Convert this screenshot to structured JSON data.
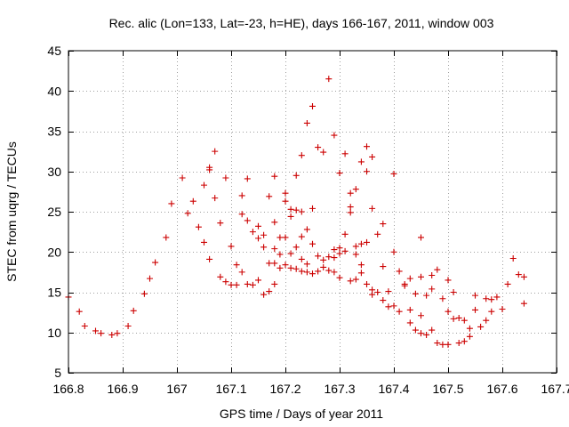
{
  "chart_data": {
    "type": "scatter",
    "title": "Rec. alic (Lon=133, Lat=-23, h=HE), days 166-167, 2011, window 003",
    "xlabel": "GPS time / Days of year 2011",
    "ylabel": "STEC from uqrg / TECUs",
    "xlim": [
      166.8,
      167.7
    ],
    "ylim": [
      5,
      45
    ],
    "xticks": [
      166.8,
      166.9,
      167,
      167.1,
      167.2,
      167.3,
      167.4,
      167.5,
      167.6,
      167.7
    ],
    "xtick_labels": [
      "166.8",
      "166.9",
      "167",
      "167.1",
      "167.2",
      "167.3",
      "167.4",
      "167.5",
      "167.6",
      "167.7"
    ],
    "yticks": [
      5,
      10,
      15,
      20,
      25,
      30,
      35,
      40,
      45
    ],
    "ytick_labels": [
      "5",
      "10",
      "15",
      "20",
      "25",
      "30",
      "35",
      "40",
      "45"
    ],
    "grid": true,
    "marker": "+",
    "color": "#cc0000",
    "points": [
      [
        166.8,
        14.4
      ],
      [
        166.82,
        12.6
      ],
      [
        166.83,
        10.8
      ],
      [
        166.85,
        10.2
      ],
      [
        166.86,
        9.9
      ],
      [
        166.88,
        9.7
      ],
      [
        166.89,
        9.9
      ],
      [
        166.91,
        10.8
      ],
      [
        166.92,
        12.7
      ],
      [
        166.94,
        14.8
      ],
      [
        166.95,
        16.7
      ],
      [
        166.96,
        18.7
      ],
      [
        166.98,
        21.8
      ],
      [
        166.99,
        26.0
      ],
      [
        167.01,
        29.2
      ],
      [
        167.02,
        24.8
      ],
      [
        167.03,
        26.3
      ],
      [
        167.04,
        23.1
      ],
      [
        167.05,
        28.3
      ],
      [
        167.05,
        21.2
      ],
      [
        167.06,
        30.2
      ],
      [
        167.06,
        30.5
      ],
      [
        167.06,
        19.1
      ],
      [
        167.07,
        32.5
      ],
      [
        167.07,
        26.7
      ],
      [
        167.08,
        23.6
      ],
      [
        167.08,
        16.9
      ],
      [
        167.09,
        16.3
      ],
      [
        167.09,
        29.2
      ],
      [
        167.1,
        20.7
      ],
      [
        167.1,
        15.9
      ],
      [
        167.11,
        18.4
      ],
      [
        167.11,
        15.9
      ],
      [
        167.12,
        27.0
      ],
      [
        167.12,
        24.7
      ],
      [
        167.12,
        17.5
      ],
      [
        167.13,
        16.0
      ],
      [
        167.13,
        29.1
      ],
      [
        167.13,
        23.9
      ],
      [
        167.14,
        22.5
      ],
      [
        167.14,
        15.9
      ],
      [
        167.15,
        23.2
      ],
      [
        167.15,
        21.7
      ],
      [
        167.15,
        16.5
      ],
      [
        167.16,
        22.1
      ],
      [
        167.16,
        14.7
      ],
      [
        167.16,
        20.6
      ],
      [
        167.17,
        26.9
      ],
      [
        167.17,
        18.6
      ],
      [
        167.17,
        15.1
      ],
      [
        167.18,
        29.4
      ],
      [
        167.18,
        23.7
      ],
      [
        167.18,
        20.4
      ],
      [
        167.18,
        18.6
      ],
      [
        167.18,
        16.0
      ],
      [
        167.19,
        21.8
      ],
      [
        167.19,
        18.0
      ],
      [
        167.19,
        19.7
      ],
      [
        167.2,
        27.3
      ],
      [
        167.2,
        21.8
      ],
      [
        167.2,
        18.4
      ],
      [
        167.2,
        26.3
      ],
      [
        167.21,
        25.3
      ],
      [
        167.21,
        24.4
      ],
      [
        167.21,
        19.8
      ],
      [
        167.21,
        18.0
      ],
      [
        167.22,
        29.5
      ],
      [
        167.22,
        25.2
      ],
      [
        167.22,
        20.6
      ],
      [
        167.22,
        17.9
      ],
      [
        167.23,
        32.0
      ],
      [
        167.23,
        25.0
      ],
      [
        167.23,
        21.9
      ],
      [
        167.23,
        19.1
      ],
      [
        167.23,
        17.6
      ],
      [
        167.24,
        36.0
      ],
      [
        167.24,
        22.8
      ],
      [
        167.24,
        18.5
      ],
      [
        167.24,
        17.5
      ],
      [
        167.25,
        38.1
      ],
      [
        167.25,
        25.4
      ],
      [
        167.25,
        21.0
      ],
      [
        167.25,
        17.3
      ],
      [
        167.26,
        33.0
      ],
      [
        167.26,
        19.5
      ],
      [
        167.26,
        17.6
      ],
      [
        167.27,
        32.4
      ],
      [
        167.27,
        19.0
      ],
      [
        167.27,
        18.1
      ],
      [
        167.28,
        41.5
      ],
      [
        167.28,
        17.7
      ],
      [
        167.28,
        19.4
      ],
      [
        167.29,
        34.5
      ],
      [
        167.29,
        20.3
      ],
      [
        167.29,
        19.3
      ],
      [
        167.29,
        17.5
      ],
      [
        167.3,
        29.8
      ],
      [
        167.3,
        20.5
      ],
      [
        167.3,
        19.8
      ],
      [
        167.3,
        16.8
      ],
      [
        167.31,
        32.2
      ],
      [
        167.31,
        22.2
      ],
      [
        167.31,
        20.1
      ],
      [
        167.32,
        27.3
      ],
      [
        167.32,
        25.6
      ],
      [
        167.32,
        24.9
      ],
      [
        167.32,
        16.4
      ],
      [
        167.33,
        27.8
      ],
      [
        167.33,
        20.7
      ],
      [
        167.33,
        19.7
      ],
      [
        167.33,
        16.6
      ],
      [
        167.34,
        31.2
      ],
      [
        167.34,
        21.0
      ],
      [
        167.34,
        18.4
      ],
      [
        167.34,
        17.4
      ],
      [
        167.35,
        33.1
      ],
      [
        167.35,
        30.0
      ],
      [
        167.35,
        21.2
      ],
      [
        167.35,
        16.0
      ],
      [
        167.36,
        31.8
      ],
      [
        167.36,
        25.4
      ],
      [
        167.36,
        15.3
      ],
      [
        167.36,
        14.7
      ],
      [
        167.37,
        22.2
      ],
      [
        167.37,
        15.0
      ],
      [
        167.38,
        23.5
      ],
      [
        167.38,
        18.2
      ],
      [
        167.38,
        14.0
      ],
      [
        167.39,
        13.2
      ],
      [
        167.39,
        15.1
      ],
      [
        167.4,
        29.7
      ],
      [
        167.4,
        20.0
      ],
      [
        167.4,
        13.3
      ],
      [
        167.41,
        17.6
      ],
      [
        167.41,
        12.6
      ],
      [
        167.42,
        16.0
      ],
      [
        167.42,
        15.8
      ],
      [
        167.43,
        16.7
      ],
      [
        167.43,
        11.2
      ],
      [
        167.43,
        12.8
      ],
      [
        167.44,
        14.8
      ],
      [
        167.44,
        10.3
      ],
      [
        167.45,
        21.8
      ],
      [
        167.45,
        16.9
      ],
      [
        167.45,
        12.1
      ],
      [
        167.45,
        9.9
      ],
      [
        167.46,
        14.6
      ],
      [
        167.46,
        9.7
      ],
      [
        167.47,
        17.1
      ],
      [
        167.47,
        15.4
      ],
      [
        167.47,
        10.3
      ],
      [
        167.48,
        17.8
      ],
      [
        167.48,
        8.7
      ],
      [
        167.49,
        14.2
      ],
      [
        167.49,
        8.5
      ],
      [
        167.5,
        16.5
      ],
      [
        167.5,
        12.6
      ],
      [
        167.5,
        8.5
      ],
      [
        167.51,
        15.0
      ],
      [
        167.51,
        11.7
      ],
      [
        167.52,
        11.8
      ],
      [
        167.52,
        8.7
      ],
      [
        167.53,
        11.5
      ],
      [
        167.53,
        8.9
      ],
      [
        167.54,
        10.5
      ],
      [
        167.54,
        9.5
      ],
      [
        167.55,
        12.8
      ],
      [
        167.55,
        14.6
      ],
      [
        167.56,
        10.7
      ],
      [
        167.57,
        14.2
      ],
      [
        167.57,
        11.5
      ],
      [
        167.58,
        12.6
      ],
      [
        167.58,
        14.1
      ],
      [
        167.59,
        14.4
      ],
      [
        167.6,
        12.9
      ],
      [
        167.61,
        16.0
      ],
      [
        167.62,
        19.2
      ],
      [
        167.63,
        17.2
      ],
      [
        167.64,
        13.6
      ],
      [
        167.64,
        16.9
      ]
    ]
  }
}
